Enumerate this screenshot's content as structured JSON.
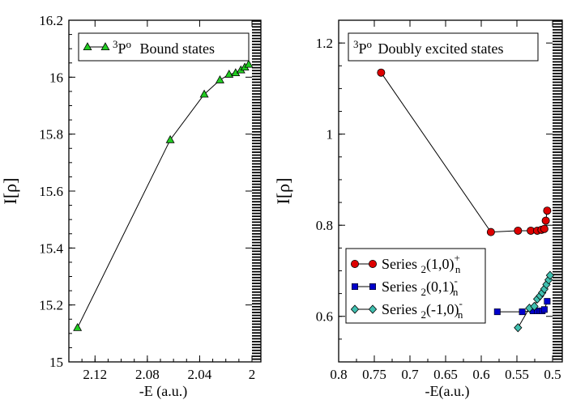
{
  "chart_data": [
    {
      "type": "line",
      "title": "",
      "xlabel": "-E (a.u.)",
      "ylabel": "I[ρ]",
      "xlim": [
        2.14,
        2.0
      ],
      "ylim": [
        15.0,
        16.2
      ],
      "xticks": [
        "2.12",
        "2.08",
        "2.04",
        "2"
      ],
      "yticks": [
        "15",
        "15.2",
        "15.4",
        "15.6",
        "15.8",
        "16",
        "16.2"
      ],
      "legend": {
        "position": "top-left",
        "sup": "3",
        "state": "P",
        "sup2": "o",
        "rest": "Bound states"
      },
      "series": [
        {
          "name": "3Po Bound states",
          "marker": "triangle",
          "color": "#22cc22",
          "points": [
            [
              2.1334,
              15.12
            ],
            [
              2.0625,
              15.78
            ],
            [
              2.0365,
              15.94
            ],
            [
              2.0245,
              15.99
            ],
            [
              2.0175,
              16.01
            ],
            [
              2.0125,
              16.015
            ],
            [
              2.0085,
              16.025
            ],
            [
              2.0055,
              16.035
            ],
            [
              2.0025,
              16.045
            ]
          ]
        }
      ]
    },
    {
      "type": "line",
      "title": "",
      "xlabel": "-E(a.u.)",
      "ylabel": "I[ρ]",
      "xlim": [
        0.8,
        0.5
      ],
      "ylim": [
        0.5,
        1.25
      ],
      "xticks": [
        "0.8",
        "0.75",
        "0.7",
        "0.65",
        "0.6",
        "0.55",
        "0.5"
      ],
      "yticks": [
        "0.6",
        "0.8",
        "1",
        "1.2"
      ],
      "legend_title": {
        "sup": "3",
        "state": "P",
        "sup2": "o",
        "rest": "Doubly excited states"
      },
      "legend_position": "bottom-left",
      "series": [
        {
          "name": "Series 2(1,0)+n",
          "label_main": "Series",
          "label_sub": "2",
          "label_paren": "(1,0)",
          "label_sup": "+",
          "label_subn": "n",
          "marker": "circle",
          "color": "#dd0000",
          "points": [
            [
              0.7405,
              1.135
            ],
            [
              0.5865,
              0.785
            ],
            [
              0.5485,
              0.788
            ],
            [
              0.5305,
              0.788
            ],
            [
              0.5215,
              0.788
            ],
            [
              0.5155,
              0.79
            ],
            [
              0.5115,
              0.792
            ],
            [
              0.5095,
              0.81
            ],
            [
              0.5075,
              0.832
            ]
          ]
        },
        {
          "name": "Series 2(0,1)-n",
          "label_main": "Series",
          "label_sub": "2",
          "label_paren": "(0,1)",
          "label_sup": "-",
          "label_subn": "n",
          "marker": "square",
          "color": "#0000cc",
          "points": [
            [
              0.5775,
              0.61
            ],
            [
              0.5425,
              0.61
            ],
            [
              0.5275,
              0.612
            ],
            [
              0.5215,
              0.612
            ],
            [
              0.5175,
              0.612
            ],
            [
              0.5145,
              0.612
            ],
            [
              0.5115,
              0.615
            ],
            [
              0.5075,
              0.633
            ]
          ]
        },
        {
          "name": "Series 2(-1,0)-n",
          "label_main": "Series",
          "label_sub": "2",
          "label_paren": "(-1,0)",
          "label_sup": "-",
          "label_subn": "n",
          "marker": "diamond",
          "color": "#40c0b0",
          "points": [
            [
              0.5485,
              0.575
            ],
            [
              0.5325,
              0.618
            ],
            [
              0.5255,
              0.622
            ],
            [
              0.5215,
              0.638
            ],
            [
              0.5175,
              0.645
            ],
            [
              0.5145,
              0.652
            ],
            [
              0.5115,
              0.66
            ],
            [
              0.5085,
              0.67
            ],
            [
              0.5055,
              0.68
            ],
            [
              0.5035,
              0.69
            ]
          ]
        }
      ]
    }
  ]
}
